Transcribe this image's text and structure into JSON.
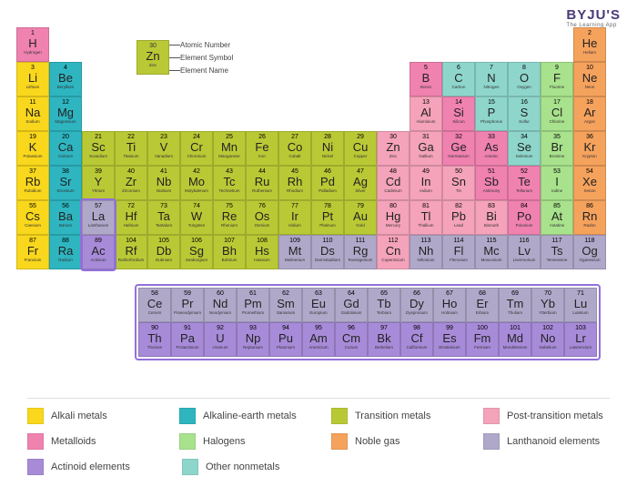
{
  "logo": {
    "brand": "BYJU'S",
    "tagline": "The Learning App"
  },
  "cell_size": {
    "w": 36,
    "h": 38
  },
  "categories": {
    "alkali": {
      "label": "Alkali metals",
      "color": "#f9d71c"
    },
    "alkaline": {
      "label": "Alkaline-earth metals",
      "color": "#2eb5c0"
    },
    "transition": {
      "label": "Transition metals",
      "color": "#b9c935"
    },
    "post": {
      "label": "Post-transition metals",
      "color": "#f4a3ba"
    },
    "metalloid": {
      "label": "Metalloids",
      "color": "#f082b0"
    },
    "halogen": {
      "label": "Halogens",
      "color": "#a8e28c"
    },
    "noble": {
      "label": "Noble gas",
      "color": "#f5a25d"
    },
    "lanthanoid": {
      "label": "Lanthanoid elements",
      "color": "#b0a8c9"
    },
    "actinoid": {
      "label": "Actinoid elements",
      "color": "#a78bd8"
    },
    "nonmetal": {
      "label": "Other nonmetals",
      "color": "#8ed6cc"
    }
  },
  "legend_rows": [
    [
      "alkali",
      "alkaline",
      "transition",
      "post"
    ],
    [
      "metalloid",
      "halogen",
      "noble",
      "lanthanoid"
    ],
    [
      "actinoid",
      "nonmetal"
    ]
  ],
  "key": {
    "example": {
      "num": "30",
      "sym": "Zn",
      "nm": "Zinc"
    },
    "labels": {
      "num": "Atomic Number",
      "sym": "Element Symbol",
      "nm": "Element Name"
    }
  },
  "elements": [
    {
      "n": 1,
      "s": "H",
      "nm": "Hydrogen",
      "r": 0,
      "c": 0,
      "cat": "metalloid"
    },
    {
      "n": 2,
      "s": "He",
      "nm": "Helium",
      "r": 0,
      "c": 17,
      "cat": "noble"
    },
    {
      "n": 3,
      "s": "Li",
      "nm": "Lithium",
      "r": 1,
      "c": 0,
      "cat": "alkali"
    },
    {
      "n": 4,
      "s": "Be",
      "nm": "Beryllium",
      "r": 1,
      "c": 1,
      "cat": "alkaline"
    },
    {
      "n": 5,
      "s": "B",
      "nm": "Boron",
      "r": 1,
      "c": 12,
      "cat": "metalloid"
    },
    {
      "n": 6,
      "s": "C",
      "nm": "Carbon",
      "r": 1,
      "c": 13,
      "cat": "nonmetal"
    },
    {
      "n": 7,
      "s": "N",
      "nm": "Nitrogen",
      "r": 1,
      "c": 14,
      "cat": "nonmetal"
    },
    {
      "n": 8,
      "s": "O",
      "nm": "Oxygen",
      "r": 1,
      "c": 15,
      "cat": "nonmetal"
    },
    {
      "n": 9,
      "s": "F",
      "nm": "Fluorine",
      "r": 1,
      "c": 16,
      "cat": "halogen"
    },
    {
      "n": 10,
      "s": "Ne",
      "nm": "Neon",
      "r": 1,
      "c": 17,
      "cat": "noble"
    },
    {
      "n": 11,
      "s": "Na",
      "nm": "Sodium",
      "r": 2,
      "c": 0,
      "cat": "alkali"
    },
    {
      "n": 12,
      "s": "Mg",
      "nm": "Magnesium",
      "r": 2,
      "c": 1,
      "cat": "alkaline"
    },
    {
      "n": 13,
      "s": "Al",
      "nm": "Aluminium",
      "r": 2,
      "c": 12,
      "cat": "post"
    },
    {
      "n": 14,
      "s": "Si",
      "nm": "Silicon",
      "r": 2,
      "c": 13,
      "cat": "metalloid"
    },
    {
      "n": 15,
      "s": "P",
      "nm": "Phosphorus",
      "r": 2,
      "c": 14,
      "cat": "nonmetal"
    },
    {
      "n": 16,
      "s": "S",
      "nm": "Sulfur",
      "r": 2,
      "c": 15,
      "cat": "nonmetal"
    },
    {
      "n": 17,
      "s": "Cl",
      "nm": "Chlorine",
      "r": 2,
      "c": 16,
      "cat": "halogen"
    },
    {
      "n": 18,
      "s": "Ar",
      "nm": "Argon",
      "r": 2,
      "c": 17,
      "cat": "noble"
    },
    {
      "n": 19,
      "s": "K",
      "nm": "Potassium",
      "r": 3,
      "c": 0,
      "cat": "alkali"
    },
    {
      "n": 20,
      "s": "Ca",
      "nm": "Calcium",
      "r": 3,
      "c": 1,
      "cat": "alkaline"
    },
    {
      "n": 21,
      "s": "Sc",
      "nm": "Scandium",
      "r": 3,
      "c": 2,
      "cat": "transition"
    },
    {
      "n": 22,
      "s": "Ti",
      "nm": "Titanium",
      "r": 3,
      "c": 3,
      "cat": "transition"
    },
    {
      "n": 23,
      "s": "V",
      "nm": "Vanadium",
      "r": 3,
      "c": 4,
      "cat": "transition"
    },
    {
      "n": 24,
      "s": "Cr",
      "nm": "Chromium",
      "r": 3,
      "c": 5,
      "cat": "transition"
    },
    {
      "n": 25,
      "s": "Mn",
      "nm": "Manganese",
      "r": 3,
      "c": 6,
      "cat": "transition"
    },
    {
      "n": 26,
      "s": "Fe",
      "nm": "Iron",
      "r": 3,
      "c": 7,
      "cat": "transition"
    },
    {
      "n": 27,
      "s": "Co",
      "nm": "Cobalt",
      "r": 3,
      "c": 8,
      "cat": "transition"
    },
    {
      "n": 28,
      "s": "Ni",
      "nm": "Nickel",
      "r": 3,
      "c": 9,
      "cat": "transition"
    },
    {
      "n": 29,
      "s": "Cu",
      "nm": "Copper",
      "r": 3,
      "c": 10,
      "cat": "transition"
    },
    {
      "n": 30,
      "s": "Zn",
      "nm": "Zinc",
      "r": 3,
      "c": 11,
      "cat": "post"
    },
    {
      "n": 31,
      "s": "Ga",
      "nm": "Gallium",
      "r": 3,
      "c": 12,
      "cat": "post"
    },
    {
      "n": 32,
      "s": "Ge",
      "nm": "Germanium",
      "r": 3,
      "c": 13,
      "cat": "metalloid"
    },
    {
      "n": 33,
      "s": "As",
      "nm": "Arsenic",
      "r": 3,
      "c": 14,
      "cat": "metalloid"
    },
    {
      "n": 34,
      "s": "Se",
      "nm": "Selenium",
      "r": 3,
      "c": 15,
      "cat": "nonmetal"
    },
    {
      "n": 35,
      "s": "Br",
      "nm": "Bromine",
      "r": 3,
      "c": 16,
      "cat": "halogen"
    },
    {
      "n": 36,
      "s": "Kr",
      "nm": "Krypton",
      "r": 3,
      "c": 17,
      "cat": "noble"
    },
    {
      "n": 37,
      "s": "Rb",
      "nm": "Rubidium",
      "r": 4,
      "c": 0,
      "cat": "alkali"
    },
    {
      "n": 38,
      "s": "Sr",
      "nm": "Strontium",
      "r": 4,
      "c": 1,
      "cat": "alkaline"
    },
    {
      "n": 39,
      "s": "Y",
      "nm": "Yttrium",
      "r": 4,
      "c": 2,
      "cat": "transition"
    },
    {
      "n": 40,
      "s": "Zr",
      "nm": "Zirconium",
      "r": 4,
      "c": 3,
      "cat": "transition"
    },
    {
      "n": 41,
      "s": "Nb",
      "nm": "Niobium",
      "r": 4,
      "c": 4,
      "cat": "transition"
    },
    {
      "n": 42,
      "s": "Mo",
      "nm": "Molybdenum",
      "r": 4,
      "c": 5,
      "cat": "transition"
    },
    {
      "n": 43,
      "s": "Tc",
      "nm": "Technetium",
      "r": 4,
      "c": 6,
      "cat": "transition"
    },
    {
      "n": 44,
      "s": "Ru",
      "nm": "Ruthenium",
      "r": 4,
      "c": 7,
      "cat": "transition"
    },
    {
      "n": 45,
      "s": "Rh",
      "nm": "Rhodium",
      "r": 4,
      "c": 8,
      "cat": "transition"
    },
    {
      "n": 46,
      "s": "Pd",
      "nm": "Palladium",
      "r": 4,
      "c": 9,
      "cat": "transition"
    },
    {
      "n": 47,
      "s": "Ag",
      "nm": "Silver",
      "r": 4,
      "c": 10,
      "cat": "transition"
    },
    {
      "n": 48,
      "s": "Cd",
      "nm": "Cadmium",
      "r": 4,
      "c": 11,
      "cat": "post"
    },
    {
      "n": 49,
      "s": "In",
      "nm": "Indium",
      "r": 4,
      "c": 12,
      "cat": "post"
    },
    {
      "n": 50,
      "s": "Sn",
      "nm": "Tin",
      "r": 4,
      "c": 13,
      "cat": "post"
    },
    {
      "n": 51,
      "s": "Sb",
      "nm": "Antimony",
      "r": 4,
      "c": 14,
      "cat": "metalloid"
    },
    {
      "n": 52,
      "s": "Te",
      "nm": "Tellurium",
      "r": 4,
      "c": 15,
      "cat": "metalloid"
    },
    {
      "n": 53,
      "s": "I",
      "nm": "Iodine",
      "r": 4,
      "c": 16,
      "cat": "halogen"
    },
    {
      "n": 54,
      "s": "Xe",
      "nm": "Xenon",
      "r": 4,
      "c": 17,
      "cat": "noble"
    },
    {
      "n": 55,
      "s": "Cs",
      "nm": "Caesium",
      "r": 5,
      "c": 0,
      "cat": "alkali"
    },
    {
      "n": 56,
      "s": "Ba",
      "nm": "Barium",
      "r": 5,
      "c": 1,
      "cat": "alkaline"
    },
    {
      "n": 57,
      "s": "La",
      "nm": "Lanthanum",
      "r": 5,
      "c": 2,
      "cat": "lanthanoid"
    },
    {
      "n": 72,
      "s": "Hf",
      "nm": "Hafnium",
      "r": 5,
      "c": 3,
      "cat": "transition"
    },
    {
      "n": 73,
      "s": "Ta",
      "nm": "Tantalum",
      "r": 5,
      "c": 4,
      "cat": "transition"
    },
    {
      "n": 74,
      "s": "W",
      "nm": "Tungsten",
      "r": 5,
      "c": 5,
      "cat": "transition"
    },
    {
      "n": 75,
      "s": "Re",
      "nm": "Rhenium",
      "r": 5,
      "c": 6,
      "cat": "transition"
    },
    {
      "n": 76,
      "s": "Os",
      "nm": "Osmium",
      "r": 5,
      "c": 7,
      "cat": "transition"
    },
    {
      "n": 77,
      "s": "Ir",
      "nm": "Iridium",
      "r": 5,
      "c": 8,
      "cat": "transition"
    },
    {
      "n": 78,
      "s": "Pt",
      "nm": "Platinum",
      "r": 5,
      "c": 9,
      "cat": "transition"
    },
    {
      "n": 79,
      "s": "Au",
      "nm": "Gold",
      "r": 5,
      "c": 10,
      "cat": "transition"
    },
    {
      "n": 80,
      "s": "Hg",
      "nm": "Mercury",
      "r": 5,
      "c": 11,
      "cat": "post"
    },
    {
      "n": 81,
      "s": "Tl",
      "nm": "Thallium",
      "r": 5,
      "c": 12,
      "cat": "post"
    },
    {
      "n": 82,
      "s": "Pb",
      "nm": "Lead",
      "r": 5,
      "c": 13,
      "cat": "post"
    },
    {
      "n": 83,
      "s": "Bi",
      "nm": "Bismuth",
      "r": 5,
      "c": 14,
      "cat": "post"
    },
    {
      "n": 84,
      "s": "Po",
      "nm": "Polonium",
      "r": 5,
      "c": 15,
      "cat": "metalloid"
    },
    {
      "n": 85,
      "s": "At",
      "nm": "Astatine",
      "r": 5,
      "c": 16,
      "cat": "halogen"
    },
    {
      "n": 86,
      "s": "Rn",
      "nm": "Radon",
      "r": 5,
      "c": 17,
      "cat": "noble"
    },
    {
      "n": 87,
      "s": "Fr",
      "nm": "Francium",
      "r": 6,
      "c": 0,
      "cat": "alkali"
    },
    {
      "n": 88,
      "s": "Ra",
      "nm": "Radium",
      "r": 6,
      "c": 1,
      "cat": "alkaline"
    },
    {
      "n": 89,
      "s": "Ac",
      "nm": "Actinium",
      "r": 6,
      "c": 2,
      "cat": "actinoid"
    },
    {
      "n": 104,
      "s": "Rf",
      "nm": "Rutherfordium",
      "r": 6,
      "c": 3,
      "cat": "transition"
    },
    {
      "n": 105,
      "s": "Db",
      "nm": "Dubnium",
      "r": 6,
      "c": 4,
      "cat": "transition"
    },
    {
      "n": 106,
      "s": "Sg",
      "nm": "Seaborgium",
      "r": 6,
      "c": 5,
      "cat": "transition"
    },
    {
      "n": 107,
      "s": "Bh",
      "nm": "Bohrium",
      "r": 6,
      "c": 6,
      "cat": "transition"
    },
    {
      "n": 108,
      "s": "Hs",
      "nm": "Hassium",
      "r": 6,
      "c": 7,
      "cat": "transition"
    },
    {
      "n": 109,
      "s": "Mt",
      "nm": "Meitnerium",
      "r": 6,
      "c": 8,
      "cat": "lanthanoid"
    },
    {
      "n": 110,
      "s": "Ds",
      "nm": "Darmstadtium",
      "r": 6,
      "c": 9,
      "cat": "lanthanoid"
    },
    {
      "n": 111,
      "s": "Rg",
      "nm": "Roentgenium",
      "r": 6,
      "c": 10,
      "cat": "lanthanoid"
    },
    {
      "n": 112,
      "s": "Cn",
      "nm": "Copernicium",
      "r": 6,
      "c": 11,
      "cat": "post"
    },
    {
      "n": 113,
      "s": "Nh",
      "nm": "Nihonium",
      "r": 6,
      "c": 12,
      "cat": "lanthanoid"
    },
    {
      "n": 114,
      "s": "Fl",
      "nm": "Flerovium",
      "r": 6,
      "c": 13,
      "cat": "lanthanoid"
    },
    {
      "n": 115,
      "s": "Mc",
      "nm": "Moscovium",
      "r": 6,
      "c": 14,
      "cat": "lanthanoid"
    },
    {
      "n": 116,
      "s": "Lv",
      "nm": "Livermorium",
      "r": 6,
      "c": 15,
      "cat": "lanthanoid"
    },
    {
      "n": 117,
      "s": "Ts",
      "nm": "Tennessine",
      "r": 6,
      "c": 16,
      "cat": "lanthanoid"
    },
    {
      "n": 118,
      "s": "Og",
      "nm": "Oganesson",
      "r": 6,
      "c": 17,
      "cat": "lanthanoid"
    }
  ],
  "fblock": [
    {
      "n": 58,
      "s": "Ce",
      "nm": "Cerium",
      "r": 0,
      "c": 0,
      "cat": "lanthanoid"
    },
    {
      "n": 59,
      "s": "Pr",
      "nm": "Praseodymium",
      "r": 0,
      "c": 1,
      "cat": "lanthanoid"
    },
    {
      "n": 60,
      "s": "Nd",
      "nm": "Neodymium",
      "r": 0,
      "c": 2,
      "cat": "lanthanoid"
    },
    {
      "n": 61,
      "s": "Pm",
      "nm": "Promethium",
      "r": 0,
      "c": 3,
      "cat": "lanthanoid"
    },
    {
      "n": 62,
      "s": "Sm",
      "nm": "Samarium",
      "r": 0,
      "c": 4,
      "cat": "lanthanoid"
    },
    {
      "n": 63,
      "s": "Eu",
      "nm": "Europium",
      "r": 0,
      "c": 5,
      "cat": "lanthanoid"
    },
    {
      "n": 64,
      "s": "Gd",
      "nm": "Gadolinium",
      "r": 0,
      "c": 6,
      "cat": "lanthanoid"
    },
    {
      "n": 65,
      "s": "Tb",
      "nm": "Terbium",
      "r": 0,
      "c": 7,
      "cat": "lanthanoid"
    },
    {
      "n": 66,
      "s": "Dy",
      "nm": "Dysprosium",
      "r": 0,
      "c": 8,
      "cat": "lanthanoid"
    },
    {
      "n": 67,
      "s": "Ho",
      "nm": "Holmium",
      "r": 0,
      "c": 9,
      "cat": "lanthanoid"
    },
    {
      "n": 68,
      "s": "Er",
      "nm": "Erbium",
      "r": 0,
      "c": 10,
      "cat": "lanthanoid"
    },
    {
      "n": 69,
      "s": "Tm",
      "nm": "Thulium",
      "r": 0,
      "c": 11,
      "cat": "lanthanoid"
    },
    {
      "n": 70,
      "s": "Yb",
      "nm": "Ytterbium",
      "r": 0,
      "c": 12,
      "cat": "lanthanoid"
    },
    {
      "n": 71,
      "s": "Lu",
      "nm": "Lutetium",
      "r": 0,
      "c": 13,
      "cat": "lanthanoid"
    },
    {
      "n": 90,
      "s": "Th",
      "nm": "Thorium",
      "r": 1,
      "c": 0,
      "cat": "actinoid"
    },
    {
      "n": 91,
      "s": "Pa",
      "nm": "Protactinium",
      "r": 1,
      "c": 1,
      "cat": "actinoid"
    },
    {
      "n": 92,
      "s": "U",
      "nm": "Uranium",
      "r": 1,
      "c": 2,
      "cat": "actinoid"
    },
    {
      "n": 93,
      "s": "Np",
      "nm": "Neptunium",
      "r": 1,
      "c": 3,
      "cat": "actinoid"
    },
    {
      "n": 94,
      "s": "Pu",
      "nm": "Plutonium",
      "r": 1,
      "c": 4,
      "cat": "actinoid"
    },
    {
      "n": 95,
      "s": "Am",
      "nm": "Americium",
      "r": 1,
      "c": 5,
      "cat": "actinoid"
    },
    {
      "n": 96,
      "s": "Cm",
      "nm": "Curium",
      "r": 1,
      "c": 6,
      "cat": "actinoid"
    },
    {
      "n": 97,
      "s": "Bk",
      "nm": "Berkelium",
      "r": 1,
      "c": 7,
      "cat": "actinoid"
    },
    {
      "n": 98,
      "s": "Cf",
      "nm": "Californium",
      "r": 1,
      "c": 8,
      "cat": "actinoid"
    },
    {
      "n": 99,
      "s": "Es",
      "nm": "Einsteinium",
      "r": 1,
      "c": 9,
      "cat": "actinoid"
    },
    {
      "n": 100,
      "s": "Fm",
      "nm": "Fermium",
      "r": 1,
      "c": 10,
      "cat": "actinoid"
    },
    {
      "n": 101,
      "s": "Md",
      "nm": "Mendelevium",
      "r": 1,
      "c": 11,
      "cat": "actinoid"
    },
    {
      "n": 102,
      "s": "No",
      "nm": "Nobelium",
      "r": 1,
      "c": 12,
      "cat": "actinoid"
    },
    {
      "n": 103,
      "s": "Lr",
      "nm": "Lawrencium",
      "r": 1,
      "c": 13,
      "cat": "actinoid"
    }
  ]
}
